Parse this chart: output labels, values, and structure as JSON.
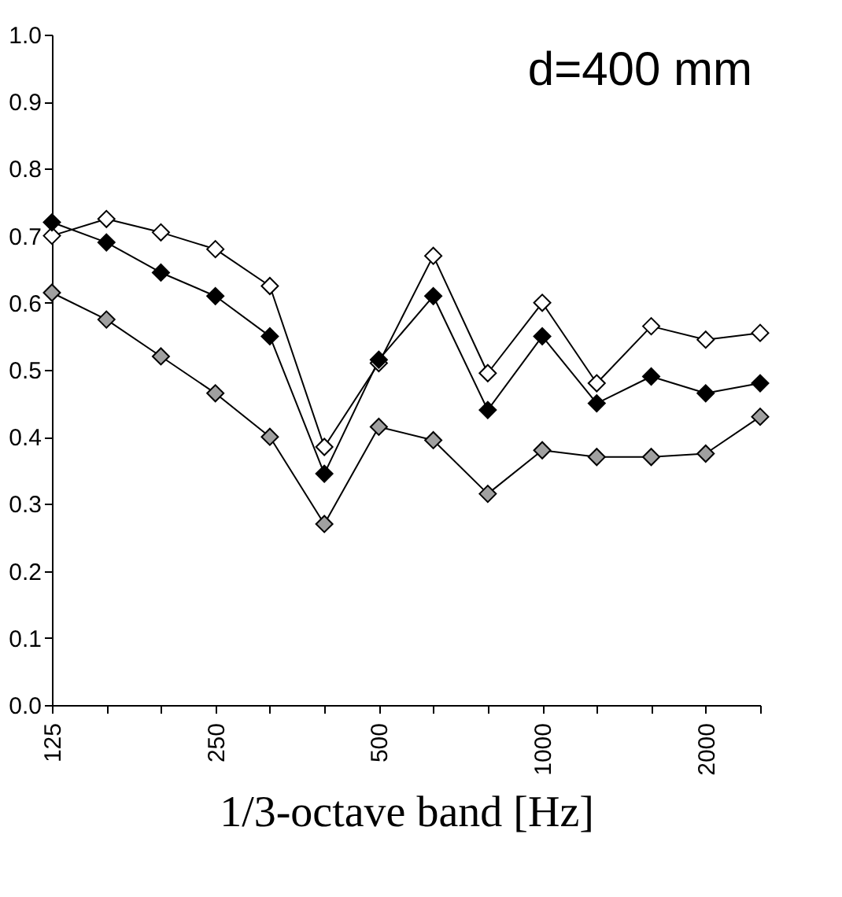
{
  "chart_data": {
    "type": "line",
    "xlabel": "1/3-octave band [Hz]",
    "annotations": [
      "d=400 mm"
    ],
    "categories": [
      "125",
      null,
      null,
      "250",
      null,
      null,
      "500",
      null,
      null,
      "1000",
      null,
      null,
      "2000",
      null
    ],
    "series": [
      {
        "color": "#ffffff",
        "values": [
          0.7,
          0.725,
          0.705,
          0.68,
          0.625,
          0.385,
          0.51,
          0.67,
          0.495,
          0.6,
          0.48,
          0.565,
          0.545,
          0.555
        ]
      },
      {
        "color": "#000000",
        "values": [
          0.72,
          0.69,
          0.645,
          0.61,
          0.55,
          0.345,
          0.515,
          0.61,
          0.44,
          0.55,
          0.45,
          0.49,
          0.465,
          0.48
        ]
      },
      {
        "color": "#a0a0a0",
        "values": [
          0.615,
          0.575,
          0.52,
          0.465,
          0.4,
          0.27,
          0.415,
          0.395,
          0.315,
          0.38,
          0.37,
          0.37,
          0.375,
          0.43
        ]
      }
    ],
    "ylim": [
      0,
      1
    ],
    "yticks": [
      {
        "value": 0,
        "label": "0.0"
      },
      0.1,
      0.2,
      0.3,
      0.4,
      0.5,
      0.6,
      0.7,
      0.8,
      0.9,
      {
        "value": 1,
        "label": "1.0"
      }
    ],
    "marker": "diamond",
    "line_style": "solid",
    "grid": false,
    "legend": false
  }
}
